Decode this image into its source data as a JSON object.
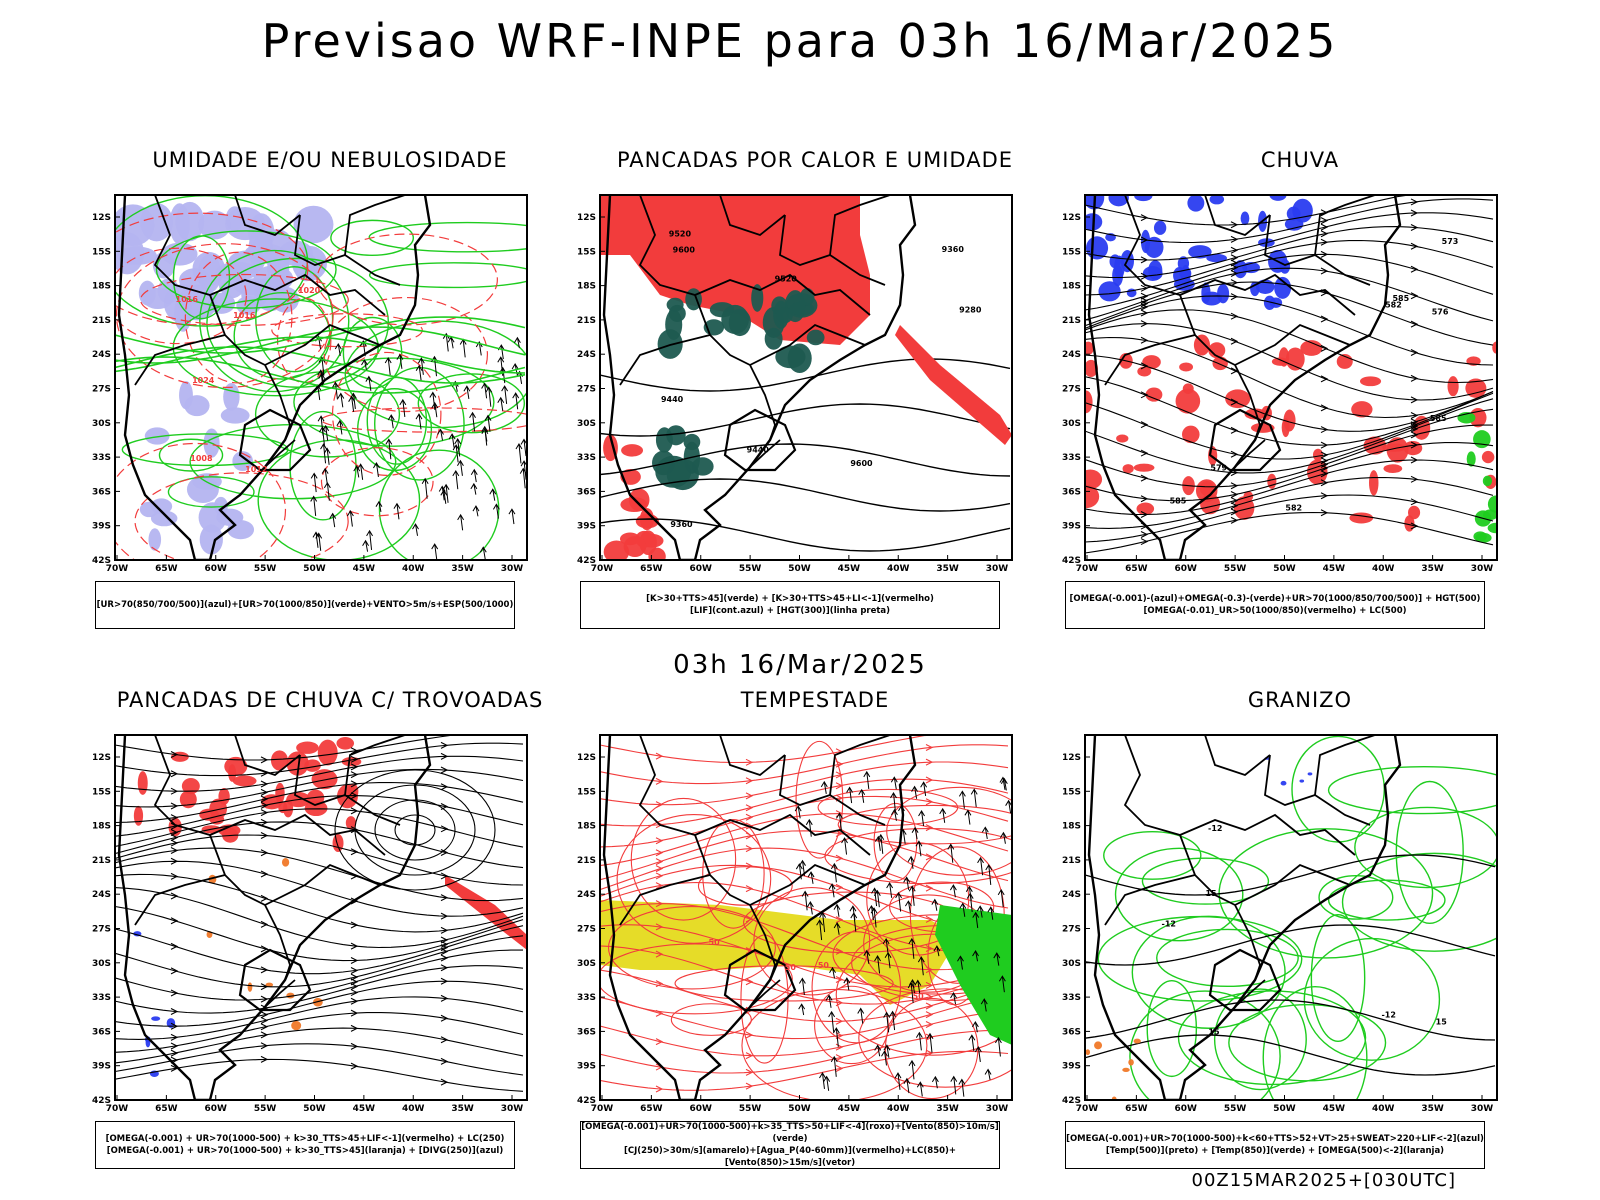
{
  "header": {
    "title": "Previsao WRF-INPE  para 03h 16/Mar/2025"
  },
  "middle_label": "03h 16/Mar/2025",
  "footer_label": "00Z15MAR2025+[030UTC]",
  "axes": {
    "lat_labels": [
      "12S",
      "15S",
      "18S",
      "21S",
      "24S",
      "27S",
      "30S",
      "33S",
      "36S",
      "39S",
      "42S"
    ],
    "lon_labels": [
      "70W",
      "65W",
      "60W",
      "55W",
      "50W",
      "45W",
      "40W",
      "35W",
      "30W"
    ]
  },
  "panels": [
    {
      "title": "UMIDADE E/OU NEBULOSIDADE",
      "legend": [
        "[UR>70(850/700/500)](azul)+[UR>70(1000/850)](verde)+VENTO>5m/s+ESP(500/1000)"
      ],
      "contour_labels": [
        "1016",
        "1012",
        "1024",
        "1020",
        "1016",
        "1008"
      ]
    },
    {
      "title": "PANCADAS POR CALOR E UMIDADE",
      "legend": [
        "[K>30+TTS>45](verde) + [K>30+TTS>45+LI<-1](vermelho)",
        "[LIF](cont.azul) + [HGT(300)](linha preta)"
      ],
      "contour_labels": [
        "9600",
        "9520",
        "9440",
        "9360",
        "9280",
        "9600",
        "9520",
        "9440",
        "9360"
      ]
    },
    {
      "title": "CHUVA",
      "legend": [
        "[OMEGA(-0.001)-(azul)+OMEGA(-0.3)-(verde)+UR>70(1000/850/700/500)] + HGT(500)",
        "[OMEGA(-0.01)_UR>50(1000/850)(vermelho) + LC(500)"
      ],
      "contour_labels": [
        "585",
        "585",
        "585",
        "582",
        "582",
        "579",
        "576",
        "573"
      ]
    },
    {
      "title": "PANCADAS DE CHUVA C/ TROVOADAS",
      "legend": [
        "[OMEGA(-0.001) + UR>70(1000-500) + k>30_TTS>45+LIF<-1](vermelho) + LC(250)",
        "[OMEGA(-0.001) + UR>70(1000-500) + k>30_TTS>45](laranja) + [DIVG(250)](azul)"
      ],
      "contour_labels": []
    },
    {
      "title": "TEMPESTADE",
      "legend": [
        "[OMEGA(-0.001)+UR>70(1000-500)+k>35_TTS>50+LIF<-4](roxo)+[Vento(850)>10m/s](verde)",
        "[CJ(250)>30m/s](amarelo)+[Agua_P(40-60mm)](vermelho)+LC(850)+[Vento(850)>15m/s](vetor)"
      ],
      "contour_labels": [
        "50",
        "50",
        "50",
        "50"
      ]
    },
    {
      "title": "GRANIZO",
      "legend": [
        "[OMEGA(-0.001)+UR>70(1000-500)+k<60+TTS>52+VT>25+SWEAT>220+LIF<-2](azul)",
        "[Temp(500)](preto) + [Temp(850)](verde) + [OMEGA(500)<-2](laranja)"
      ],
      "contour_labels": [
        "15",
        "15",
        "-12",
        "-12",
        "-12",
        "15"
      ]
    }
  ],
  "colors": {
    "red": "#f23c3c",
    "green": "#1fcc1f",
    "blue": "#2a3cf0",
    "lavender": "#b4b4f0",
    "teal": "#1e5a50",
    "yellow": "#e6dc28",
    "orange": "#f07828"
  }
}
